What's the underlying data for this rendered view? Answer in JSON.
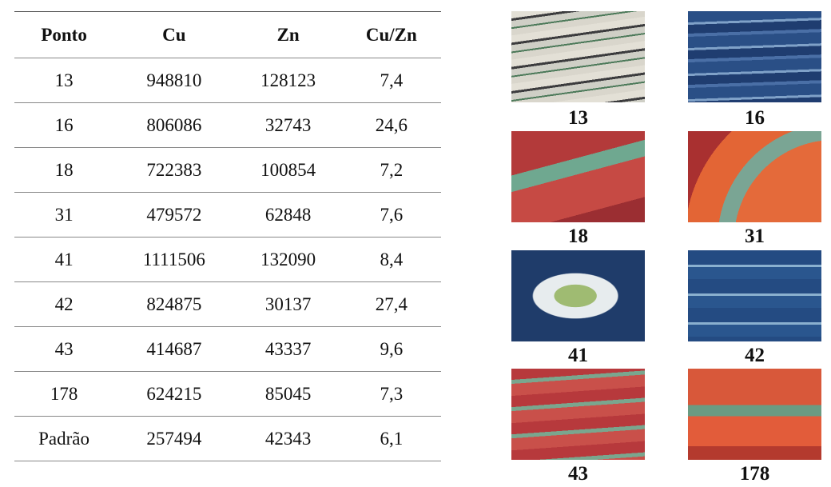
{
  "table": {
    "header": [
      "Ponto",
      "Cu",
      "Zn",
      "Cu/Zn"
    ],
    "rows": [
      [
        "13",
        "948810",
        "128123",
        "7,4"
      ],
      [
        "16",
        "806086",
        "32743",
        "24,6"
      ],
      [
        "18",
        "722383",
        "100854",
        "7,2"
      ],
      [
        "31",
        "479572",
        "62848",
        "7,6"
      ],
      [
        "41",
        "1111506",
        "132090",
        "8,4"
      ],
      [
        "42",
        "824875",
        "30137",
        "27,4"
      ],
      [
        "43",
        "414687",
        "43337",
        "9,6"
      ],
      [
        "178",
        "624215",
        "85045",
        "7,3"
      ],
      [
        "Padrão",
        "257494",
        "42343",
        "6,1"
      ]
    ]
  },
  "images": [
    {
      "label": "13"
    },
    {
      "label": "16"
    },
    {
      "label": "18"
    },
    {
      "label": "31"
    },
    {
      "label": "41"
    },
    {
      "label": "42"
    },
    {
      "label": "43"
    },
    {
      "label": "178"
    }
  ]
}
